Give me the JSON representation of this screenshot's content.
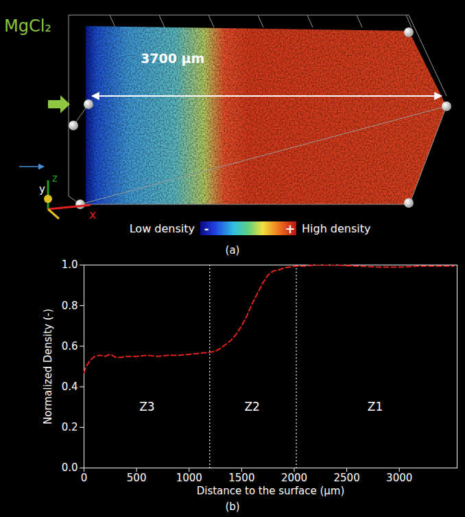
{
  "image_panel": {
    "panel_label": "(a)",
    "ion_label": "MgCl₂",
    "length_label": "3700 µm",
    "colorbar": {
      "low_label": "Low density",
      "high_label": "High density",
      "low_symbol": "-",
      "high_symbol": "+"
    },
    "axis_labels": [
      "x",
      "y",
      "z"
    ]
  },
  "chart_data": {
    "type": "line",
    "panel_label": "(b)",
    "xlabel": "Distance to the surface (μm)",
    "ylabel": "Normalized Density (-)",
    "x": [
      0,
      20,
      60,
      100,
      150,
      200,
      250,
      300,
      350,
      400,
      500,
      600,
      700,
      800,
      900,
      1000,
      1100,
      1196,
      1250,
      1300,
      1350,
      1400,
      1450,
      1500,
      1550,
      1600,
      1650,
      1700,
      1750,
      1800,
      1850,
      1900,
      1950,
      2020,
      2100,
      2200,
      2400,
      2600,
      2800,
      3000,
      3200,
      3400,
      3520
    ],
    "values": [
      0.47,
      0.5,
      0.53,
      0.55,
      0.555,
      0.55,
      0.56,
      0.545,
      0.545,
      0.55,
      0.55,
      0.555,
      0.55,
      0.555,
      0.555,
      0.56,
      0.565,
      0.57,
      0.575,
      0.59,
      0.61,
      0.63,
      0.66,
      0.7,
      0.75,
      0.81,
      0.86,
      0.91,
      0.95,
      0.97,
      0.975,
      0.985,
      0.99,
      0.995,
      0.995,
      1.0,
      1.0,
      0.995,
      0.99,
      0.99,
      0.995,
      0.995,
      0.995
    ],
    "color": "#e3241c",
    "line_style": "dashed",
    "grid": false,
    "xlim": [
      0,
      3550
    ],
    "xticks": [
      0,
      500,
      1000,
      1500,
      2000,
      2500,
      3000
    ],
    "ylim": [
      0,
      1
    ],
    "yticks": [
      {
        "value": 0,
        "label": "0.0"
      },
      {
        "value": 0.2,
        "label": "0.2"
      },
      {
        "value": 0.4,
        "label": "0.4"
      },
      {
        "value": 0.6,
        "label": "0.6"
      },
      {
        "value": 0.8,
        "label": "0.8"
      },
      {
        "value": 1,
        "label": "1.0"
      }
    ],
    "boundaries": [
      1196,
      2020
    ],
    "annotations": [
      {
        "text": "Z3",
        "x": 600,
        "y": 0.3
      },
      {
        "text": "Z2",
        "x": 1600,
        "y": 0.3
      },
      {
        "text": "Z1",
        "x": 2770,
        "y": 0.3
      }
    ]
  }
}
